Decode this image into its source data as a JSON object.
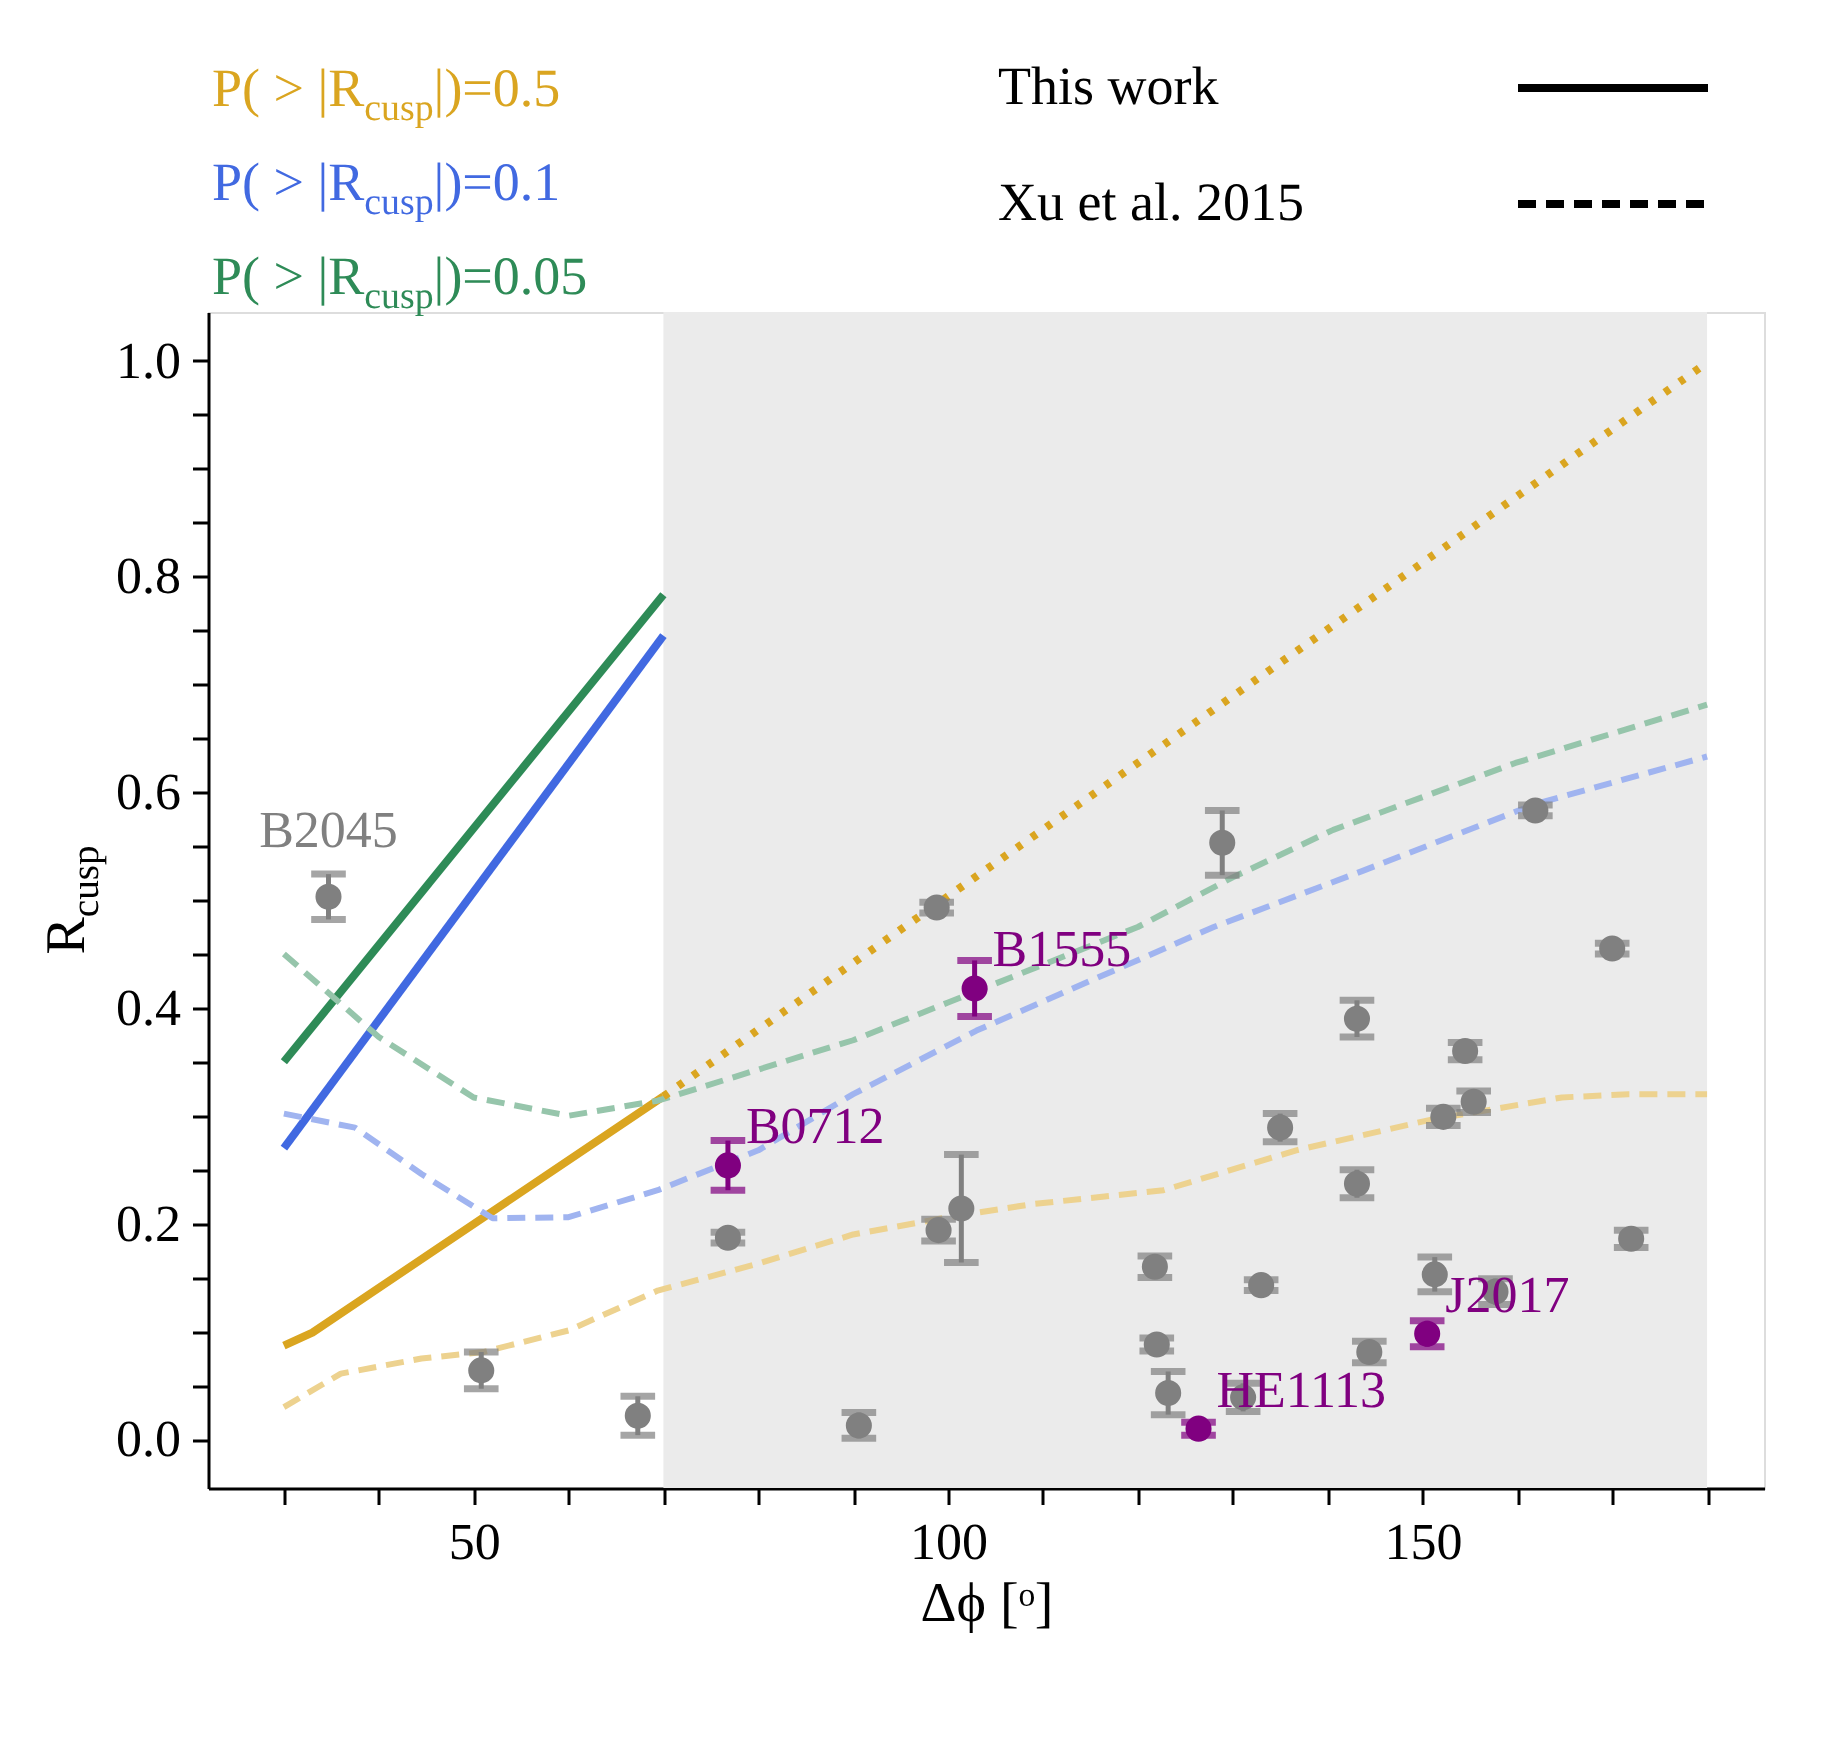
{
  "chart_data": {
    "type": "line",
    "xlabel": "Δϕ [ᵒ]",
    "ylabel": "R$_{cusp}$",
    "xlim": [
      22,
      186
    ],
    "ylim": [
      -0.045,
      1.045
    ],
    "xticks": [
      {
        "value": 30,
        "label": null
      },
      {
        "value": 40,
        "label": null
      },
      50,
      {
        "value": 60,
        "label": null
      },
      {
        "value": 70,
        "label": null
      },
      {
        "value": 80,
        "label": null
      },
      {
        "value": 90,
        "label": null
      },
      100,
      {
        "value": 110,
        "label": null
      },
      {
        "value": 120,
        "label": null
      },
      {
        "value": 130,
        "label": null
      },
      {
        "value": 140,
        "label": null
      },
      150,
      {
        "value": 160,
        "label": null
      },
      {
        "value": 170,
        "label": null
      },
      {
        "value": 180,
        "label": null
      }
    ],
    "yticks": [
      {
        "value": 0,
        "label": "0.0"
      },
      {
        "value": 0.05,
        "label": null
      },
      {
        "value": 0.1,
        "label": null
      },
      {
        "value": 0.15,
        "label": null
      },
      {
        "value": 0.2,
        "label": "0.2"
      },
      {
        "value": 0.25,
        "label": null
      },
      {
        "value": 0.3,
        "label": null
      },
      {
        "value": 0.35,
        "label": null
      },
      {
        "value": 0.4,
        "label": "0.4"
      },
      {
        "value": 0.45,
        "label": null
      },
      {
        "value": 0.5,
        "label": null
      },
      {
        "value": 0.55,
        "label": null
      },
      {
        "value": 0.6,
        "label": "0.6"
      },
      {
        "value": 0.65,
        "label": null
      },
      {
        "value": 0.7,
        "label": null
      },
      {
        "value": 0.75,
        "label": null
      },
      {
        "value": 0.8,
        "label": "0.8"
      },
      {
        "value": 0.85,
        "label": null
      },
      {
        "value": 0.9,
        "label": null
      },
      {
        "value": 0.95,
        "label": null
      },
      {
        "value": 1.0,
        "label": "1.0"
      }
    ],
    "grid": false,
    "legend": "top left",
    "bands": [
      {
        "axis": "x",
        "from": 70,
        "to": 180,
        "color": "#ebebeb"
      }
    ],
    "annotations": [
      "This work",
      "Xu et al. 2015"
    ],
    "series": [
      {
        "name": "P( > |R$_{cusp}$|)=0.5",
        "line_style": "solid",
        "color": "#daa520",
        "x": [
          30,
          33,
          70
        ],
        "values": [
          0.087,
          0.099,
          0.318
        ]
      },
      {
        "name": "P( > |R$_{cusp}$|)=0.1",
        "line_style": "solid",
        "color": "#4169e1",
        "x": [
          30,
          70
        ],
        "values": [
          0.27,
          0.745
        ]
      },
      {
        "name": "P( > |R$_{cusp}$|)=0.05",
        "line_style": "solid",
        "color": "#2e8b57",
        "x": [
          30,
          70
        ],
        "values": [
          0.35,
          0.783
        ]
      },
      {
        "line_style": "dashed",
        "color": "#edd28f",
        "x": [
          30,
          36,
          44.5,
          51,
          60,
          69.4,
          80,
          90,
          100,
          108.8,
          122.7,
          136.7,
          150.7,
          164.7,
          171.7,
          180
        ],
        "values": [
          0.03,
          0.061,
          0.075,
          0.081,
          0.101,
          0.138,
          0.163,
          0.19,
          0.206,
          0.218,
          0.231,
          0.268,
          0.296,
          0.317,
          0.32,
          0.32
        ]
      },
      {
        "line_style": "dashed",
        "color": "#a0b4f0",
        "x": [
          30,
          37.5,
          44.5,
          52,
          60,
          69.4,
          80,
          90,
          103,
          128,
          143.7,
          161.9,
          180
        ],
        "values": [
          0.302,
          0.289,
          0.246,
          0.205,
          0.206,
          0.231,
          0.268,
          0.32,
          0.379,
          0.475,
          0.527,
          0.589,
          0.633
        ]
      },
      {
        "line_style": "dashed",
        "color": "#96c5ab",
        "x": [
          30,
          40,
          50,
          60,
          69.4,
          90,
          100,
          120,
          130,
          140.6,
          159.8,
          180
        ],
        "values": [
          0.45,
          0.373,
          0.317,
          0.3,
          0.314,
          0.37,
          0.405,
          0.475,
          0.521,
          0.565,
          0.627,
          0.681
        ]
      },
      {
        "line_style": "dotted",
        "color": "#daa520",
        "x": [
          70,
          180
        ],
        "values": [
          0.318,
          0.998
        ]
      },
      {
        "type": "scatter",
        "marker": "circle",
        "color": "#808080",
        "x": [
          34.7,
          50.8,
          67.3,
          90.6,
          76.8,
          98.8,
          101.4,
          99,
          128.9,
          161.9,
          170,
          143.1,
          154.5,
          155.4,
          152.2,
          135,
          143.1,
          172,
          121.8,
          151.3,
          157.7,
          133,
          122,
          144.4,
          123.2,
          131.1
        ],
        "values": [
          0.503,
          0.064,
          0.022,
          0.013,
          0.187,
          0.493,
          0.214,
          0.194,
          0.553,
          0.583,
          0.455,
          0.39,
          0.36,
          0.313,
          0.299,
          0.289,
          0.237,
          0.186,
          0.16,
          0.153,
          0.137,
          0.143,
          0.088,
          0.081,
          0.043,
          0.039
        ],
        "errors": [
          0.021,
          0.017,
          0.018,
          0.012,
          0.005,
          0.005,
          0.05,
          0.01,
          0.03,
          0.005,
          0.005,
          0.017,
          0.008,
          0.01,
          0.008,
          0.013,
          0.013,
          0.008,
          0.01,
          0.016,
          0.012,
          0.005,
          0.006,
          0.01,
          0.02,
          0.013
        ],
        "value_labels": [
          "B2045",
          null,
          null,
          null,
          null,
          null,
          null,
          null,
          null,
          null,
          null,
          null,
          null,
          null,
          null,
          null,
          null,
          null,
          null,
          null,
          null,
          null,
          null,
          null,
          null,
          null
        ]
      },
      {
        "type": "scatter",
        "marker": "circle",
        "color": "#800080",
        "x": [
          102.8,
          76.8,
          150.5,
          126.4
        ],
        "values": [
          0.418,
          0.254,
          0.098,
          0.01
        ],
        "errors": [
          0.026,
          0.023,
          0.012,
          0.006
        ],
        "value_labels": [
          "B1555",
          "B0712",
          "J2017",
          "HE1113"
        ]
      }
    ]
  }
}
